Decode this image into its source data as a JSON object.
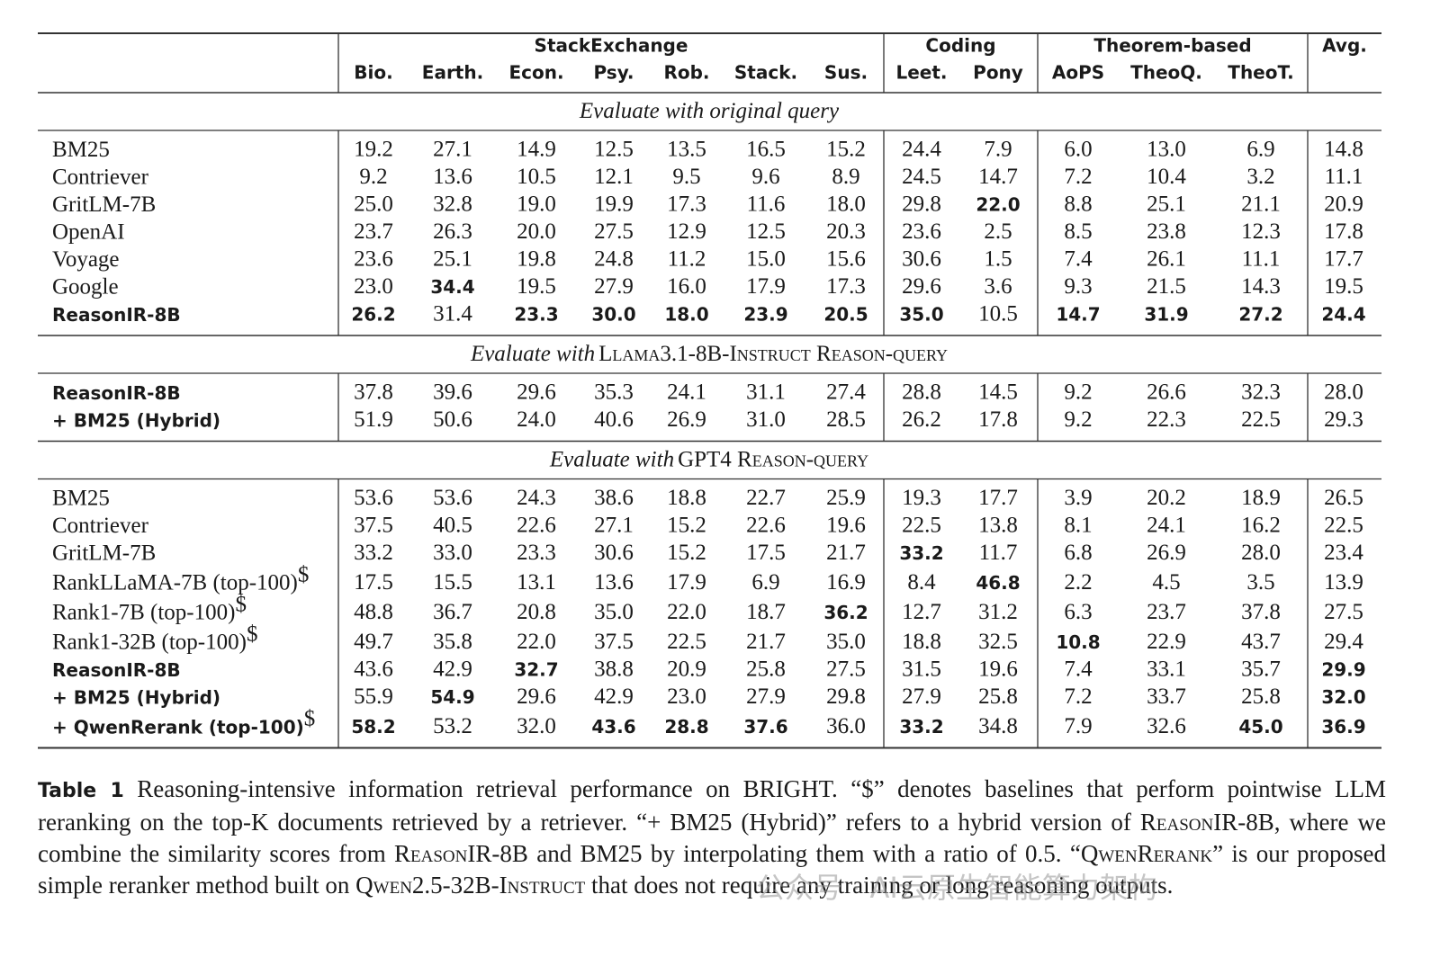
{
  "table": {
    "groups": [
      {
        "label": "StackExchange",
        "columns": [
          "Bio.",
          "Earth.",
          "Econ.",
          "Psy.",
          "Rob.",
          "Stack.",
          "Sus."
        ]
      },
      {
        "label": "Coding",
        "columns": [
          "Leet.",
          "Pony"
        ]
      },
      {
        "label": "Theorem-based",
        "columns": [
          "AoPS",
          "TheoQ.",
          "TheoT."
        ]
      },
      {
        "label": "Avg.",
        "columns": []
      }
    ],
    "sections": [
      {
        "title": {
          "italic": "Evaluate with original query"
        },
        "rows": [
          {
            "label": "BM25",
            "values": [
              "19.2",
              "27.1",
              "14.9",
              "12.5",
              "13.5",
              "16.5",
              "15.2",
              "24.4",
              "7.9",
              "6.0",
              "13.0",
              "6.9",
              "14.8"
            ],
            "bold": []
          },
          {
            "label": "Contriever",
            "values": [
              "9.2",
              "13.6",
              "10.5",
              "12.1",
              "9.5",
              "9.6",
              "8.9",
              "24.5",
              "14.7",
              "7.2",
              "10.4",
              "3.2",
              "11.1"
            ],
            "bold": []
          },
          {
            "label": "GritLM-7B",
            "values": [
              "25.0",
              "32.8",
              "19.0",
              "19.9",
              "17.3",
              "11.6",
              "18.0",
              "29.8",
              "22.0",
              "8.8",
              "25.1",
              "21.1",
              "20.9"
            ],
            "bold": [
              8
            ]
          },
          {
            "label": "OpenAI",
            "values": [
              "23.7",
              "26.3",
              "20.0",
              "27.5",
              "12.9",
              "12.5",
              "20.3",
              "23.6",
              "2.5",
              "8.5",
              "23.8",
              "12.3",
              "17.8"
            ],
            "bold": []
          },
          {
            "label": "Voyage",
            "values": [
              "23.6",
              "25.1",
              "19.8",
              "24.8",
              "11.2",
              "15.0",
              "15.6",
              "30.6",
              "1.5",
              "7.4",
              "26.1",
              "11.1",
              "17.7"
            ],
            "bold": []
          },
          {
            "label": "Google",
            "values": [
              "23.0",
              "34.4",
              "19.5",
              "27.9",
              "16.0",
              "17.9",
              "17.3",
              "29.6",
              "3.6",
              "9.3",
              "21.5",
              "14.3",
              "19.5"
            ],
            "bold": [
              1
            ]
          },
          {
            "label": "ReasonIR-8B",
            "label_style": "bold-sans",
            "values": [
              "26.2",
              "31.4",
              "23.3",
              "30.0",
              "18.0",
              "23.9",
              "20.5",
              "35.0",
              "10.5",
              "14.7",
              "31.9",
              "27.2",
              "24.4"
            ],
            "bold": [
              0,
              2,
              3,
              4,
              5,
              6,
              7,
              9,
              10,
              11,
              12
            ]
          }
        ]
      },
      {
        "title": {
          "italic": "Evaluate with",
          "smallcaps": "Llama3.1-8B-Instruct Reason-query"
        },
        "rows": [
          {
            "label": "ReasonIR-8B",
            "label_style": "bold-sans",
            "values": [
              "37.8",
              "39.6",
              "29.6",
              "35.3",
              "24.1",
              "31.1",
              "27.4",
              "28.8",
              "14.5",
              "9.2",
              "26.6",
              "32.3",
              "28.0"
            ],
            "bold": []
          },
          {
            "label": "+ BM25 (Hybrid)",
            "label_style": "bold-sans",
            "values": [
              "51.9",
              "50.6",
              "24.0",
              "40.6",
              "26.9",
              "31.0",
              "28.5",
              "26.2",
              "17.8",
              "9.2",
              "22.3",
              "22.5",
              "29.3"
            ],
            "bold": []
          }
        ]
      },
      {
        "title": {
          "italic": "Evaluate with",
          "smallcaps": "GPT4 Reason-query"
        },
        "rows": [
          {
            "label": "BM25",
            "values": [
              "53.6",
              "53.6",
              "24.3",
              "38.6",
              "18.8",
              "22.7",
              "25.9",
              "19.3",
              "17.7",
              "3.9",
              "20.2",
              "18.9",
              "26.5"
            ],
            "bold": []
          },
          {
            "label": "Contriever",
            "values": [
              "37.5",
              "40.5",
              "22.6",
              "27.1",
              "15.2",
              "22.6",
              "19.6",
              "22.5",
              "13.8",
              "8.1",
              "24.1",
              "16.2",
              "22.5"
            ],
            "bold": []
          },
          {
            "label": "GritLM-7B",
            "values": [
              "33.2",
              "33.0",
              "23.3",
              "30.6",
              "15.2",
              "17.5",
              "21.7",
              "33.2",
              "11.7",
              "6.8",
              "26.9",
              "28.0",
              "23.4"
            ],
            "bold": [
              7
            ]
          },
          {
            "label": "RankLLaMA-7B (top-100)",
            "label_sup": "$",
            "values": [
              "17.5",
              "15.5",
              "13.1",
              "13.6",
              "17.9",
              "6.9",
              "16.9",
              "8.4",
              "46.8",
              "2.2",
              "4.5",
              "3.5",
              "13.9"
            ],
            "bold": [
              8
            ]
          },
          {
            "label": "Rank1-7B (top-100)",
            "label_sup": "$",
            "values": [
              "48.8",
              "36.7",
              "20.8",
              "35.0",
              "22.0",
              "18.7",
              "36.2",
              "12.7",
              "31.2",
              "6.3",
              "23.7",
              "37.8",
              "27.5"
            ],
            "bold": [
              6
            ]
          },
          {
            "label": "Rank1-32B (top-100)",
            "label_sup": "$",
            "values": [
              "49.7",
              "35.8",
              "22.0",
              "37.5",
              "22.5",
              "21.7",
              "35.0",
              "18.8",
              "32.5",
              "10.8",
              "22.9",
              "43.7",
              "29.4"
            ],
            "bold": [
              9
            ]
          },
          {
            "label": "ReasonIR-8B",
            "label_style": "bold-sans",
            "values": [
              "43.6",
              "42.9",
              "32.7",
              "38.8",
              "20.9",
              "25.8",
              "27.5",
              "31.5",
              "19.6",
              "7.4",
              "33.1",
              "35.7",
              "29.9"
            ],
            "bold": [
              2,
              12
            ]
          },
          {
            "label": "+ BM25 (Hybrid)",
            "label_style": "bold-sans",
            "values": [
              "55.9",
              "54.9",
              "29.6",
              "42.9",
              "23.0",
              "27.9",
              "29.8",
              "27.9",
              "25.8",
              "7.2",
              "33.7",
              "25.8",
              "32.0"
            ],
            "bold": [
              1,
              12
            ]
          },
          {
            "label": "+ QwenRerank (top-100)",
            "label_style": "bold-sans",
            "label_sup": "$",
            "values": [
              "58.2",
              "53.2",
              "32.0",
              "43.6",
              "28.8",
              "37.6",
              "36.0",
              "33.2",
              "34.8",
              "7.9",
              "32.6",
              "45.0",
              "36.9"
            ],
            "bold": [
              0,
              3,
              4,
              5,
              7,
              11,
              12
            ]
          }
        ]
      }
    ]
  },
  "caption": [
    {
      "text": "Table 1",
      "style": "bold-sans"
    },
    {
      "text": " Reasoning-intensive information retrieval performance on BRIGHT. “$” denotes baselines that perform pointwise LLM reranking on the top-K documents retrieved by a retriever. “+ BM25 (Hybrid)” refers to a hybrid version of "
    },
    {
      "text": "ReasonIR-8B",
      "style": "smallcaps"
    },
    {
      "text": ", where we combine the similarity scores from "
    },
    {
      "text": "ReasonIR-8B",
      "style": "smallcaps"
    },
    {
      "text": " and BM25 by interpolating them with a ratio of 0.5. “"
    },
    {
      "text": "QwenRerank",
      "style": "smallcaps"
    },
    {
      "text": "” is our proposed simple reranker method built on "
    },
    {
      "text": "Qwen2.5-32B-Instruct",
      "style": "smallcaps"
    },
    {
      "text": " that does not require any training or long reasoning outputs."
    }
  ],
  "watermark": "公众号 · AI云原生智能算力架构"
}
